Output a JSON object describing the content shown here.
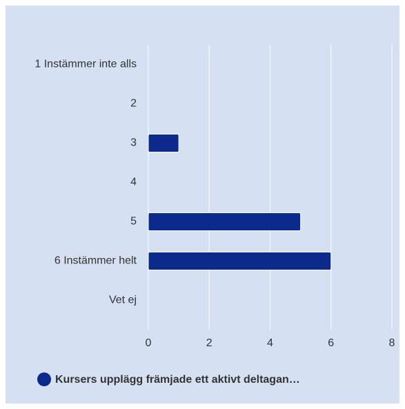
{
  "chart_data": {
    "type": "barh",
    "categories": [
      "1 Instämmer inte alls",
      "2",
      "3",
      "4",
      "5",
      "6 Instämmer helt",
      "Vet ej"
    ],
    "series": [
      {
        "name": "Kursers upplägg främjade ett aktivt deltagan…",
        "color": "#0b2a8c",
        "values": [
          0,
          0,
          1,
          0,
          5,
          6,
          0
        ]
      }
    ],
    "xlim": [
      0,
      8
    ],
    "xticks": [
      0,
      2,
      4,
      6,
      8
    ],
    "grid": true,
    "legend": "bottom"
  }
}
